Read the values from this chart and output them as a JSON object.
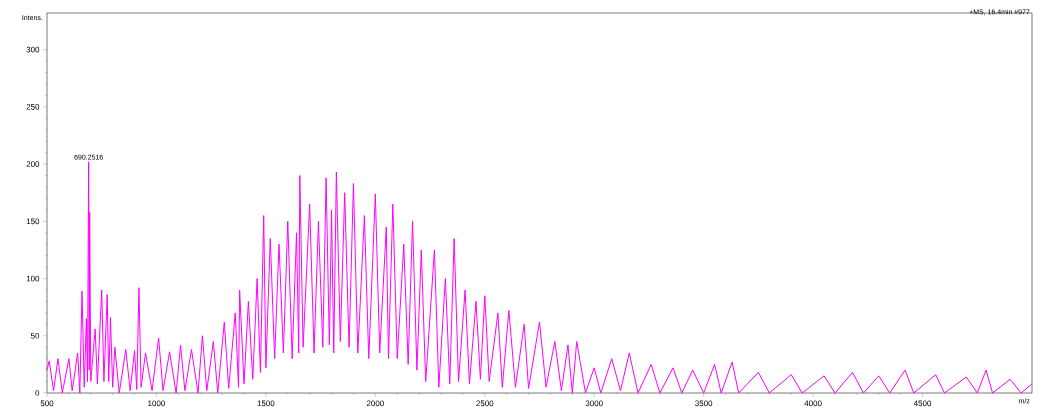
{
  "chart_data": {
    "type": "line",
    "title": "+MS, 16.4min #977",
    "xlabel": "m/z",
    "ylabel": "Intens.",
    "annotations": [
      {
        "text": "690.2516",
        "x": 690.2516,
        "y": 202
      }
    ],
    "x": [
      500,
      510,
      530,
      550,
      570,
      600,
      615,
      640,
      650,
      660,
      670,
      680,
      685,
      690.2516,
      693,
      695,
      700,
      720,
      730,
      750,
      760,
      775,
      782,
      790,
      800,
      810,
      830,
      860,
      880,
      900,
      910,
      920,
      930,
      950,
      980,
      1010,
      1030,
      1060,
      1090,
      1110,
      1130,
      1160,
      1190,
      1210,
      1230,
      1260,
      1280,
      1310,
      1330,
      1360,
      1375,
      1380,
      1400,
      1420,
      1440,
      1460,
      1475,
      1490,
      1500,
      1520,
      1540,
      1560,
      1580,
      1600,
      1620,
      1640,
      1650,
      1655,
      1670,
      1700,
      1720,
      1740,
      1760,
      1775,
      1790,
      1800,
      1810,
      1822,
      1840,
      1860,
      1880,
      1900,
      1920,
      1950,
      1970,
      2000,
      2020,
      2050,
      2060,
      2080,
      2100,
      2130,
      2150,
      2170,
      2190,
      2210,
      2230,
      2270,
      2290,
      2320,
      2340,
      2360,
      2380,
      2410,
      2430,
      2460,
      2480,
      2500,
      2520,
      2560,
      2580,
      2610,
      2640,
      2680,
      2700,
      2750,
      2780,
      2820,
      2850,
      2880,
      2900,
      2920,
      2960,
      3000,
      3030,
      3080,
      3120,
      3160,
      3200,
      3260,
      3300,
      3360,
      3400,
      3450,
      3500,
      3550,
      3580,
      3630,
      3660,
      3750,
      3800,
      3900,
      3950,
      4050,
      4100,
      4180,
      4230,
      4300,
      4350,
      4420,
      4460,
      4560,
      4600,
      4700,
      4750,
      4790,
      4820,
      4900,
      4950,
      5000
    ],
    "series": [
      {
        "color": "#ff00ff",
        "values": [
          20,
          28,
          2,
          30,
          0,
          30,
          2,
          35,
          0,
          89,
          5,
          65,
          10,
          202,
          20,
          158,
          10,
          56,
          8,
          90,
          10,
          86,
          10,
          66,
          5,
          40,
          0,
          38,
          2,
          37,
          3,
          92,
          5,
          35,
          2,
          48,
          2,
          36,
          0,
          42,
          2,
          38,
          0,
          50,
          2,
          45,
          0,
          62,
          4,
          70,
          5,
          90,
          8,
          80,
          12,
          100,
          18,
          155,
          22,
          135,
          30,
          130,
          35,
          150,
          30,
          140,
          35,
          190,
          40,
          165,
          35,
          150,
          40,
          188,
          42,
          160,
          35,
          193,
          45,
          175,
          40,
          183,
          35,
          155,
          30,
          174,
          35,
          145,
          30,
          165,
          30,
          130,
          25,
          150,
          20,
          125,
          10,
          125,
          5,
          100,
          8,
          135,
          10,
          90,
          8,
          80,
          12,
          85,
          10,
          70,
          5,
          72,
          5,
          60,
          4,
          62,
          5,
          45,
          2,
          42,
          0,
          45,
          0,
          22,
          0,
          30,
          2,
          35,
          0,
          25,
          0,
          22,
          0,
          20,
          0,
          25,
          0,
          27,
          0,
          18,
          0,
          16,
          0,
          15,
          0,
          18,
          0,
          15,
          0,
          20,
          0,
          16,
          0,
          14,
          0,
          20,
          0,
          12,
          0,
          8
        ]
      }
    ],
    "xlim": [
      500,
      5000
    ],
    "ylim": [
      0,
      332
    ],
    "xticks": [
      500,
      1000,
      1500,
      2000,
      2500,
      3000,
      3500,
      4000,
      4500
    ],
    "yticks": [
      0,
      50,
      100,
      150,
      200,
      250,
      300
    ],
    "marker": "none",
    "line_style": "solid",
    "grid": false,
    "legend": false
  }
}
